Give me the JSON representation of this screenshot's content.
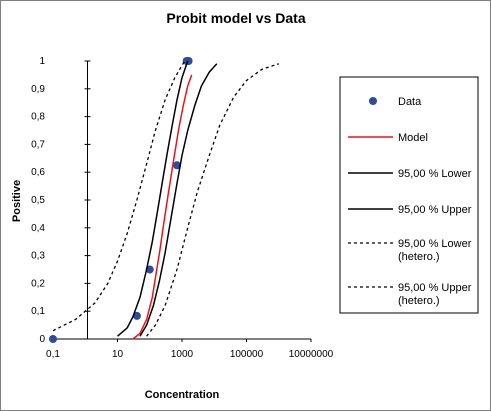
{
  "chart_data": {
    "type": "scatter",
    "title": "Probit model vs Data",
    "xlabel": "Concentration",
    "ylabel": "Positive",
    "x_scale": "log",
    "xlim": [
      0.1,
      10000000
    ],
    "ylim": [
      0,
      1
    ],
    "x_tick_labels": [
      "0,1",
      "10",
      "1000",
      "100000",
      "10000000"
    ],
    "x_ticks": [
      0.1,
      10,
      1000,
      100000,
      10000000
    ],
    "y_tick_labels": [
      "0",
      "0,1",
      "0,2",
      "0,3",
      "0,4",
      "0,5",
      "0,6",
      "0,7",
      "0,8",
      "0,9",
      "1"
    ],
    "y_ticks": [
      0,
      0.1,
      0.2,
      0.3,
      0.4,
      0.5,
      0.6,
      0.7,
      0.8,
      0.9,
      1
    ],
    "grid": false,
    "legend_position": "right",
    "colors": {
      "data": "#2e4b9c",
      "model": "#e8141c",
      "bounds": "#000000"
    },
    "series": [
      {
        "name": "Data",
        "kind": "points",
        "x": [
          0.1,
          40,
          100,
          700,
          1400,
          1600
        ],
        "y": [
          0,
          0.083,
          0.25,
          0.625,
          1,
          1
        ]
      },
      {
        "name": "Model",
        "kind": "line",
        "x": [
          30,
          50,
          80,
          120,
          160,
          200,
          260,
          350,
          450,
          600,
          800,
          1100,
          1500,
          2000
        ],
        "y": [
          0,
          0.02,
          0.07,
          0.15,
          0.24,
          0.31,
          0.4,
          0.5,
          0.58,
          0.67,
          0.76,
          0.84,
          0.91,
          0.95
        ]
      },
      {
        "name": "95,00 % Lower",
        "kind": "line",
        "x": [
          10,
          20,
          30,
          50,
          80,
          120,
          180,
          250,
          350,
          500,
          700,
          1000,
          1500
        ],
        "y": [
          0.01,
          0.04,
          0.08,
          0.15,
          0.25,
          0.35,
          0.47,
          0.57,
          0.67,
          0.77,
          0.86,
          0.94,
          1.0
        ]
      },
      {
        "name": "95,00 % Upper",
        "kind": "line",
        "x": [
          50,
          80,
          130,
          200,
          300,
          450,
          700,
          1000,
          1500,
          2500,
          4000,
          7000,
          12000
        ],
        "y": [
          0.01,
          0.05,
          0.12,
          0.21,
          0.31,
          0.43,
          0.56,
          0.66,
          0.75,
          0.84,
          0.91,
          0.96,
          0.99
        ]
      },
      {
        "name": "95,00 % Lower\n(hetero.)",
        "kind": "line",
        "x": [
          0.1,
          0.5,
          2,
          5,
          10,
          20,
          40,
          80,
          150,
          300,
          600,
          1200
        ],
        "y": [
          0.03,
          0.07,
          0.13,
          0.2,
          0.28,
          0.38,
          0.5,
          0.63,
          0.75,
          0.86,
          0.94,
          1.0
        ]
      },
      {
        "name": "95,00 % Upper\n(hetero.)",
        "kind": "line",
        "x": [
          80,
          150,
          300,
          700,
          1500,
          3000,
          7000,
          15000,
          40000,
          100000,
          300000,
          1000000
        ],
        "y": [
          0.01,
          0.05,
          0.12,
          0.25,
          0.4,
          0.53,
          0.66,
          0.77,
          0.87,
          0.93,
          0.97,
          0.99
        ]
      }
    ]
  }
}
